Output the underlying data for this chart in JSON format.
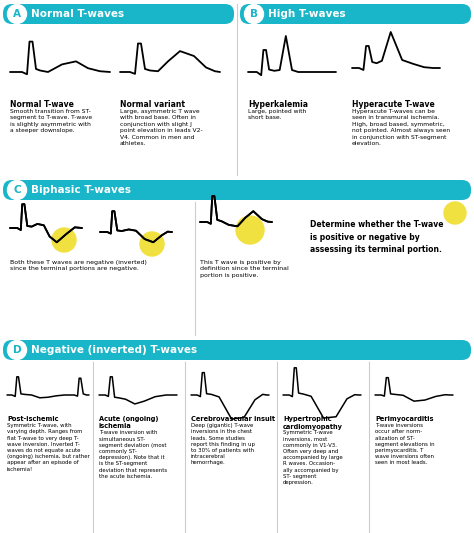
{
  "bg_color": "#ffffff",
  "teal": "#19b5c8",
  "yellow": "#f0e040",
  "gray_line": "#cccccc",
  "section_a_title": "Normal T-waves",
  "section_b_title": "High T-waves",
  "section_c_title": "Biphasic T-waves",
  "section_d_title": "Negative (inverted) T-waves",
  "texts": {
    "normal_twave_title": "Normal T-wave",
    "normal_twave_body": "Smooth transition from ST-\nsegment to T-wave. T-wave\nis slightly asymmetric with\na steeper downslope.",
    "normal_variant_title": "Normal variant",
    "normal_variant_body": "Large, asymmetric T wave\nwith broad base. Often in\nconjunction with slight J\npoint elevation in leads V2-\nV4. Common in men and\nathletes.",
    "hyperkalemia_title": "Hyperkalemia",
    "hyperkalemia_body": "Large, pointed with\nshort base.",
    "hyperacute_title": "Hyperacute T-wave",
    "hyperacute_body": "Hyperacute T-waves can be\nseen in transmural ischemia.\nHigh, broad based, symmetric,\nnot pointed. Almost always seen\nin conjunction with ST-segment\nelevation.",
    "biphasic_neg_body": "Both these T waves are negative (inverted)\nsince the terminal portions are negative.",
    "biphasic_pos_body": "This T wave is positive by\ndefinition since the terminal\nportion is positive.",
    "biphasic_rule": "Determine whether the T-wave\nis positive or negative by\nassessing its terminal portion.",
    "post_ischemic_title": "Post-ischemic",
    "post_ischemic_body": "Symmetric T-wave, with\nvarying depth. Ranges from\nflat T-wave to very deep T-\nwave inversion. Inverted T-\nwaves do not equate acute\n(ongoing) ischemia, but rather\nappear after an episode of\nischemia!",
    "acute_title": "Acute (ongoing)\nischemia",
    "acute_body": "T-wave inversion with\nsimultaneous ST-\nsegment deviation (most\ncommonly ST-\ndepression). Note that it\nis the ST-segment\ndeviation that represents\nthe acute ischemia.",
    "cerebro_title": "Cerebrovascular insult",
    "cerebro_body": "Deep (gigantic) T-wave\ninversions in the chest\nleads. Some studies\nreport this finding in up\nto 30% of patients with\nintracerebral\nhemorrhage.",
    "hcm_title": "Hypertrophic\ncardiomyopathy",
    "hcm_body": "Symmetric T-wave\ninversions, most\ncommonly in V1-V3.\nOften very deep and\naccompanied by large\nR waves. Occasion-\nally accompanied by\nST- segment\ndepression.",
    "peri_title": "Perimyocarditis",
    "peri_body": "T-wave inversions\noccur after norm-\nalization of ST-\nsegment elevations in\nperimyocarditis. T\nwave inversions often\nseen in most leads."
  }
}
